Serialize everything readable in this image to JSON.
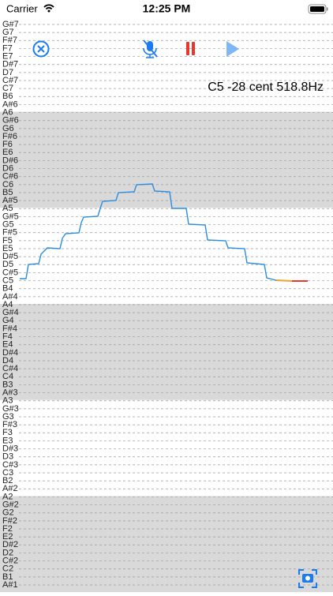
{
  "status_bar": {
    "carrier": "Carrier",
    "time": "12:25 PM"
  },
  "readout": "C5 -28 cent 518.8Hz",
  "notes": [
    "G#7",
    "G7",
    "F#7",
    "F7",
    "E7",
    "D#7",
    "D7",
    "C#7",
    "C7",
    "B6",
    "A#6",
    "A6",
    "G#6",
    "G6",
    "F#6",
    "F6",
    "E6",
    "D#6",
    "D6",
    "C#6",
    "C6",
    "B5",
    "A#5",
    "A5",
    "G#5",
    "G5",
    "F#5",
    "F5",
    "E5",
    "D#5",
    "D5",
    "C#5",
    "C5",
    "B4",
    "A#4",
    "A4",
    "G#4",
    "G4",
    "F#4",
    "F4",
    "E4",
    "D#4",
    "D4",
    "C#4",
    "C4",
    "B3",
    "A#3",
    "A3",
    "G#3",
    "G3",
    "F#3",
    "F3",
    "E3",
    "D#3",
    "D3",
    "C#3",
    "C3",
    "B2",
    "A#2",
    "A2",
    "G#2",
    "G2",
    "F#2",
    "F2",
    "E2",
    "D#2",
    "D2",
    "C#2",
    "C2",
    "B1",
    "A#1"
  ]
}
